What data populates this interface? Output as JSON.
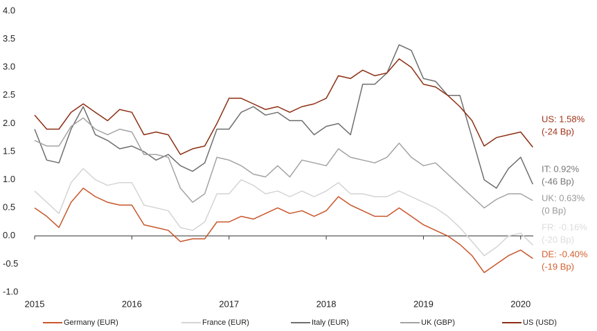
{
  "chart_data": {
    "type": "line",
    "x": [
      2015,
      2015.125,
      2015.25,
      2015.375,
      2015.5,
      2015.625,
      2015.75,
      2015.875,
      2016,
      2016.125,
      2016.25,
      2016.375,
      2016.5,
      2016.625,
      2016.75,
      2016.875,
      2017,
      2017.125,
      2017.25,
      2017.375,
      2017.5,
      2017.625,
      2017.75,
      2017.875,
      2018,
      2018.125,
      2018.25,
      2018.375,
      2018.5,
      2018.625,
      2018.75,
      2018.875,
      2019,
      2019.125,
      2019.25,
      2019.375,
      2019.5,
      2019.625,
      2019.75,
      2019.875,
      2020,
      2020.125
    ],
    "xlim": [
      2015,
      2020.13
    ],
    "xticks": [
      2015,
      2016,
      2017,
      2018,
      2019,
      2020
    ],
    "ylim": [
      -1,
      4
    ],
    "yticks": [
      {
        "value": -1,
        "label": "-1.0"
      },
      -0.5,
      {
        "value": 0,
        "label": "0.0"
      },
      0.5,
      {
        "value": 1,
        "label": "1.0"
      },
      1.5,
      {
        "value": 2,
        "label": "2.0"
      },
      2.5,
      {
        "value": 3,
        "label": "3.0"
      },
      3.5,
      {
        "value": 4,
        "label": "4.0"
      }
    ],
    "series": [
      {
        "name": "Germany (EUR)",
        "color": "#c8552a",
        "label_color": "#d0602f",
        "end_label": [
          "DE: -0.40%",
          "(-19 Bp)"
        ],
        "values": [
          0.5,
          0.35,
          0.15,
          0.6,
          0.85,
          0.7,
          0.6,
          0.55,
          0.55,
          0.2,
          0.15,
          0.1,
          -0.1,
          -0.05,
          -0.05,
          0.25,
          0.25,
          0.35,
          0.3,
          0.4,
          0.5,
          0.4,
          0.45,
          0.35,
          0.45,
          0.7,
          0.55,
          0.45,
          0.35,
          0.35,
          0.5,
          0.35,
          0.2,
          0.1,
          0,
          -0.15,
          -0.35,
          -0.65,
          -0.5,
          -0.35,
          -0.25,
          -0.4
        ]
      },
      {
        "name": "France (EUR)",
        "color": "#d4d4d4",
        "label_color": "#dcdcdc",
        "end_label": [
          "FR: -0.16%",
          "(-20 Bp)"
        ],
        "values": [
          0.8,
          0.6,
          0.4,
          0.95,
          1.2,
          1.0,
          0.9,
          0.95,
          0.95,
          0.55,
          0.5,
          0.45,
          0.15,
          0.1,
          0.25,
          0.75,
          0.75,
          1.0,
          0.9,
          0.75,
          0.8,
          0.7,
          0.8,
          0.7,
          0.8,
          0.95,
          0.75,
          0.75,
          0.7,
          0.7,
          0.8,
          0.7,
          0.6,
          0.5,
          0.35,
          0.15,
          -0.1,
          -0.35,
          -0.2,
          0,
          0.05,
          -0.16
        ]
      },
      {
        "name": "Italy (EUR)",
        "color": "#6e6e6e",
        "label_color": "#777777",
        "end_label": [
          "IT: 0.92%",
          "(-46 Bp)"
        ],
        "values": [
          1.9,
          1.35,
          1.3,
          1.9,
          2.3,
          1.8,
          1.7,
          1.55,
          1.6,
          1.5,
          1.35,
          1.45,
          1.25,
          1.15,
          1.3,
          1.9,
          1.9,
          2.2,
          2.3,
          2.15,
          2.2,
          2.05,
          2.05,
          1.8,
          1.95,
          2.0,
          1.8,
          2.7,
          2.7,
          2.9,
          3.4,
          3.3,
          2.8,
          2.75,
          2.5,
          2.5,
          1.75,
          1.0,
          0.85,
          1.2,
          1.4,
          0.92
        ]
      },
      {
        "name": "UK (GBP)",
        "color": "#a3a3a3",
        "label_color": "#9a9a9a",
        "end_label": [
          "UK: 0.63%",
          "(0 Bp)"
        ],
        "values": [
          1.7,
          1.6,
          1.6,
          1.95,
          2.1,
          1.9,
          1.8,
          1.9,
          1.85,
          1.45,
          1.45,
          1.4,
          0.85,
          0.6,
          0.75,
          1.4,
          1.35,
          1.25,
          1.1,
          1.05,
          1.25,
          1.05,
          1.35,
          1.3,
          1.25,
          1.55,
          1.4,
          1.35,
          1.3,
          1.4,
          1.65,
          1.4,
          1.25,
          1.3,
          1.1,
          0.9,
          0.7,
          0.5,
          0.65,
          0.75,
          0.75,
          0.63
        ]
      },
      {
        "name": "US (USD)",
        "color": "#8c2d12",
        "label_color": "#a0341a",
        "end_label": [
          "US: 1.58%",
          "(-24 Bp)"
        ],
        "values": [
          2.15,
          1.9,
          1.9,
          2.2,
          2.35,
          2.2,
          2.05,
          2.25,
          2.2,
          1.8,
          1.85,
          1.8,
          1.45,
          1.55,
          1.6,
          2.0,
          2.45,
          2.45,
          2.35,
          2.25,
          2.3,
          2.2,
          2.3,
          2.35,
          2.45,
          2.85,
          2.8,
          2.95,
          2.85,
          2.9,
          3.15,
          3.0,
          2.7,
          2.65,
          2.5,
          2.3,
          2.05,
          1.6,
          1.75,
          1.8,
          1.85,
          1.58
        ]
      }
    ]
  }
}
